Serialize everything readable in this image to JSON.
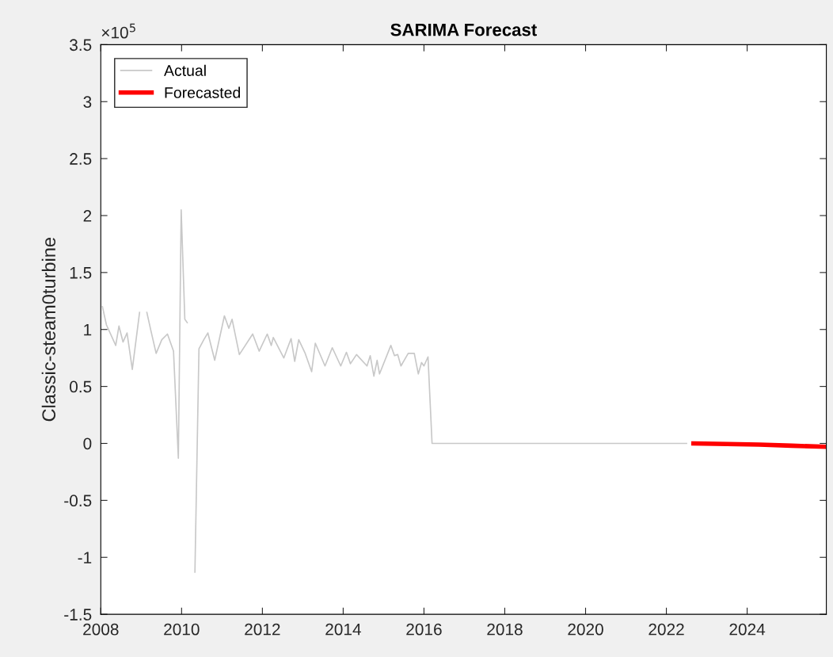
{
  "chart_data": {
    "type": "line",
    "title": "SARIMA Forecast",
    "ylabel": "Classic-steam0turbine",
    "annotations": [
      "×10$^{5}$"
    ],
    "xlim": [
      2008,
      2025.96
    ],
    "xticks": [
      2008,
      2010,
      2012,
      2014,
      2016,
      2018,
      2020,
      2022,
      2024
    ],
    "ylim": [
      -1.5,
      3.5
    ],
    "yticks": [
      -1.5,
      -1,
      -0.5,
      0,
      0.5,
      1,
      1.5,
      2,
      2.5,
      3,
      3.5
    ],
    "grid": false,
    "legend": "top left",
    "line_style": "solid",
    "marker": "none",
    "series": [
      {
        "name": "Actual",
        "color": "#c8c8c8",
        "x": [
          2008.04,
          2008.14,
          2008.37,
          2008.45,
          2008.55,
          2008.65,
          2008.78,
          2008.96,
          2009.05,
          2009.14,
          2009.24,
          2009.37,
          2009.51,
          2009.65,
          2009.8,
          2009.92,
          2009.99,
          2010.08,
          2010.14,
          2010.24,
          2010.33,
          2010.43,
          2010.55,
          2010.65,
          2010.82,
          2011.06,
          2011.17,
          2011.25,
          2011.43,
          2011.76,
          2011.92,
          2012.12,
          2012.22,
          2012.27,
          2012.53,
          2012.71,
          2012.8,
          2012.9,
          2013.06,
          2013.22,
          2013.31,
          2013.55,
          2013.73,
          2013.94,
          2014.08,
          2014.18,
          2014.33,
          2014.59,
          2014.67,
          2014.76,
          2014.84,
          2014.9,
          2015.18,
          2015.27,
          2015.35,
          2015.43,
          2015.61,
          2015.76,
          2015.86,
          2015.94,
          2016.0,
          2016.1,
          2016.2,
          2022.5
        ],
        "values": [
          1.2,
          1.04,
          0.86,
          1.03,
          0.89,
          0.97,
          0.65,
          1.15,
          null,
          1.15,
          0.99,
          0.79,
          0.91,
          0.96,
          0.81,
          -0.13,
          2.05,
          1.09,
          1.06,
          null,
          -1.13,
          0.83,
          0.91,
          0.97,
          0.73,
          1.12,
          1.01,
          1.09,
          0.78,
          0.96,
          0.81,
          0.96,
          0.86,
          0.93,
          0.75,
          0.92,
          0.72,
          0.91,
          0.79,
          0.63,
          0.88,
          0.68,
          0.84,
          0.68,
          0.8,
          0.7,
          0.78,
          0.68,
          0.77,
          0.59,
          0.73,
          0.61,
          0.86,
          0.77,
          0.78,
          0.68,
          0.79,
          0.79,
          0.61,
          0.71,
          0.68,
          0.76,
          0,
          0
        ]
      },
      {
        "name": "Forecasted",
        "color": "#ff0000",
        "x": [
          2022.67,
          2023.5,
          2024.3,
          2025.1,
          2025.96
        ],
        "values": [
          0,
          -0.005,
          -0.01,
          -0.02,
          -0.03
        ]
      }
    ]
  }
}
